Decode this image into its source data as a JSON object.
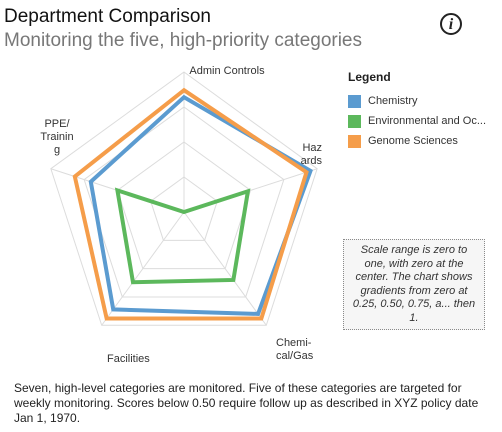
{
  "header": {
    "title": "Department Comparison",
    "subtitle": "Monitoring the five, high-priority categories"
  },
  "icons": {
    "info": "info-icon"
  },
  "legend": {
    "title": "Legend",
    "items": [
      {
        "label": "Chemistry",
        "color": "#5b9bd0"
      },
      {
        "label": "Environmental and Oc...",
        "color": "#5cb85c"
      },
      {
        "label": "Genome Sciences",
        "color": "#f59d4a"
      }
    ]
  },
  "note": "Scale range is zero to one, with zero at the center. The chart shows gradients from zero at 0.25, 0.50, 0.75, a... then 1.",
  "caption": "Seven, high-level categories are monitored. Five of these categories are targeted for weekly monitoring. Scores below 0.50 require follow up as described in XYZ policy date Jan 1, 1970.",
  "chart_data": {
    "type": "radar",
    "axes": [
      {
        "name": "Admin Controls",
        "lines": [
          "Admin Controls"
        ]
      },
      {
        "name": "Hazards",
        "lines": [
          "Haz",
          "ards"
        ]
      },
      {
        "name": "Chemical/Gas",
        "lines": [
          "Chemi-",
          "cal/Gas"
        ]
      },
      {
        "name": "Facilities",
        "lines": [
          "Facilities"
        ]
      },
      {
        "name": "PPE/Training",
        "lines": [
          "PPE/",
          "Trainin",
          "g"
        ]
      }
    ],
    "range": [
      0,
      1
    ],
    "gridlines": [
      0.25,
      0.5,
      0.75,
      1
    ],
    "series": [
      {
        "name": "Chemistry",
        "color": "#5b9bd0",
        "values": [
          0.82,
          0.95,
          0.9,
          0.86,
          0.7
        ]
      },
      {
        "name": "Environmental and Oc...",
        "color": "#5cb85c",
        "values": [
          0.0,
          0.48,
          0.6,
          0.62,
          0.5
        ]
      },
      {
        "name": "Genome Sciences",
        "color": "#f59d4a",
        "values": [
          0.87,
          0.92,
          0.94,
          0.94,
          0.82
        ]
      }
    ]
  }
}
